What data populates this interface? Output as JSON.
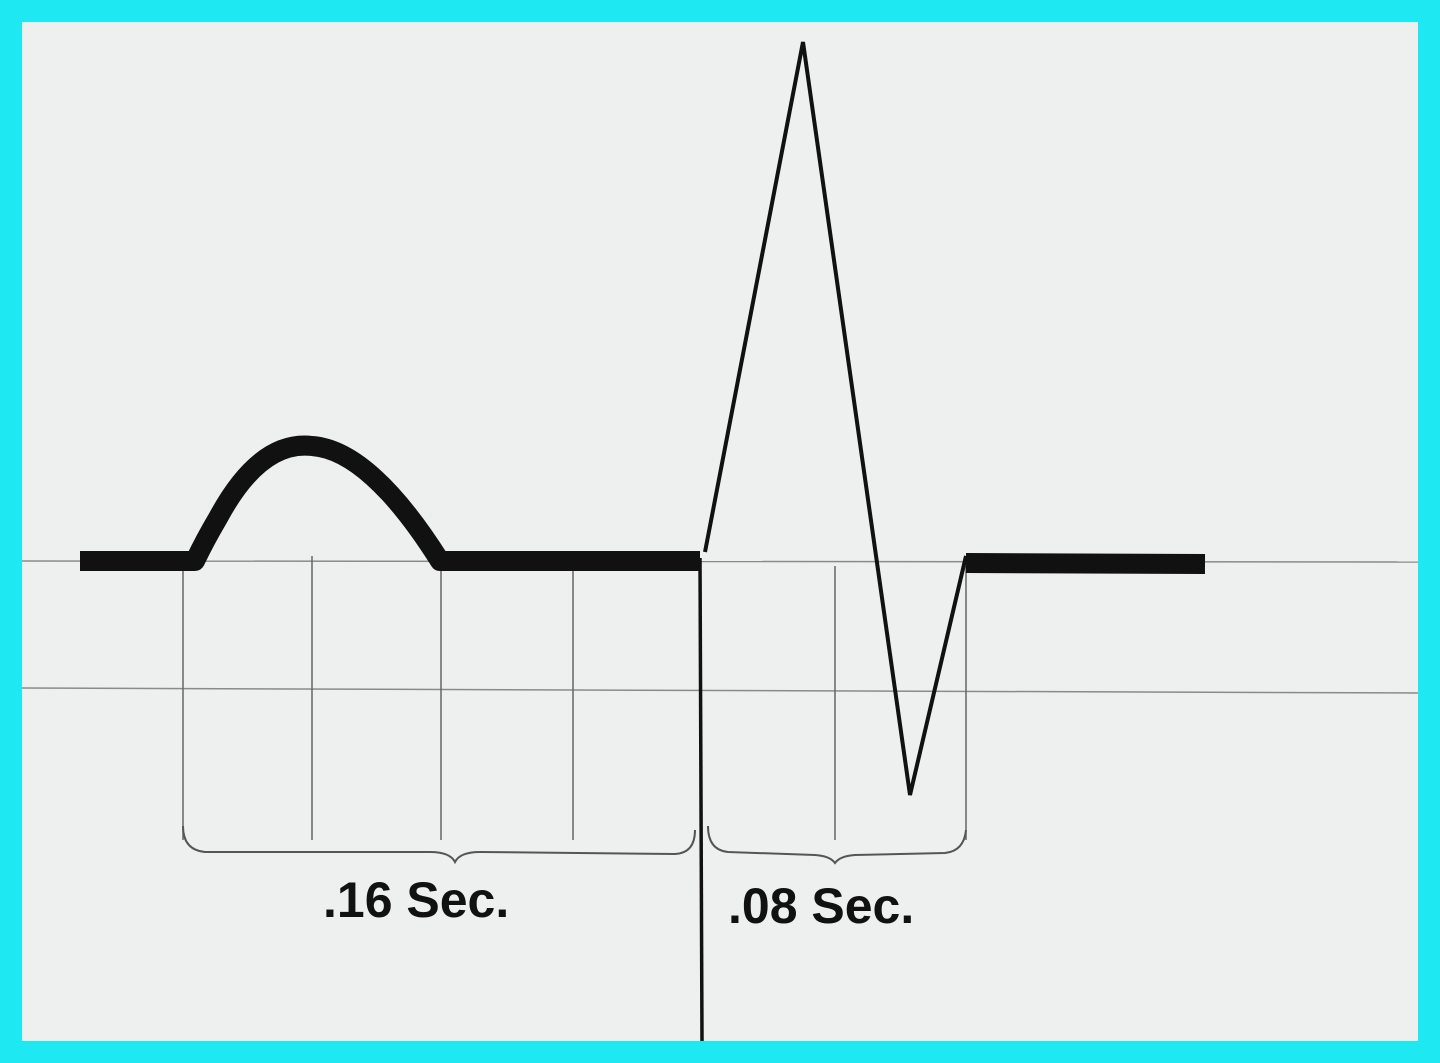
{
  "diagram": {
    "colors": {
      "border": "#1ee8f2",
      "paper": "#eef0ef",
      "ink": "#111111",
      "gridline": "#8a8a8a"
    },
    "labels": {
      "pr_interval": ".16 Sec.",
      "qrs_interval": ".08 Sec."
    }
  }
}
